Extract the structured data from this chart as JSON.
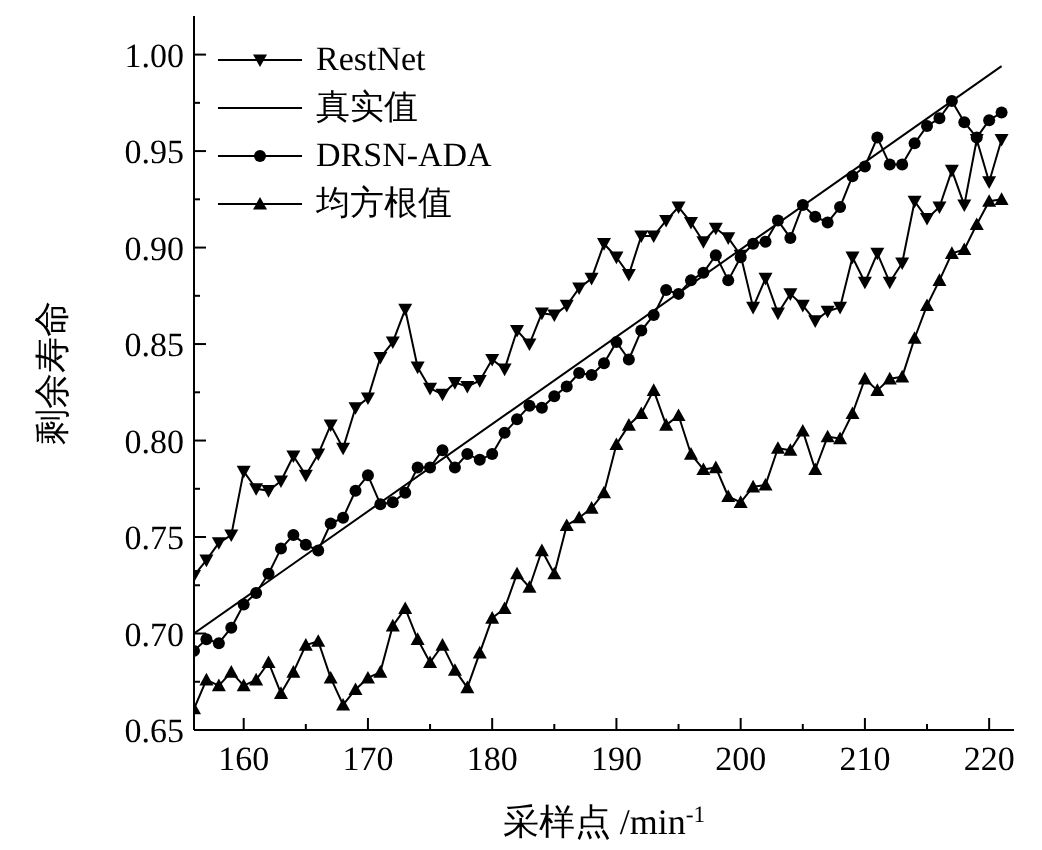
{
  "chart_data": {
    "type": "line",
    "xlabel": "采样点 /min$^{-1}$",
    "ylabel": "剩余寿命",
    "xlim": [
      156,
      222
    ],
    "xticks": [
      160,
      {
        "value": 165,
        "label": null
      },
      170,
      {
        "value": 175,
        "label": null
      },
      180,
      {
        "value": 185,
        "label": null
      },
      190,
      {
        "value": 195,
        "label": null
      },
      200,
      {
        "value": 205,
        "label": null
      },
      210,
      {
        "value": 215,
        "label": null
      },
      220
    ],
    "ylim": [
      0.65,
      1.02
    ],
    "yticks": [
      0.65,
      {
        "value": 0.675,
        "label": null
      },
      {
        "value": 0.7,
        "label": "0.70"
      },
      {
        "value": 0.725,
        "label": null
      },
      0.75,
      {
        "value": 0.775,
        "label": null
      },
      {
        "value": 0.8,
        "label": "0.80"
      },
      {
        "value": 0.825,
        "label": null
      },
      0.85,
      {
        "value": 0.875,
        "label": null
      },
      {
        "value": 0.9,
        "label": "0.90"
      },
      {
        "value": 0.925,
        "label": null
      },
      0.95,
      {
        "value": 0.975,
        "label": null
      },
      {
        "value": 1.0,
        "label": "1.00"
      }
    ],
    "grid": false,
    "legend": "top left",
    "line_style": "solid",
    "series": [
      {
        "name": "RestNet",
        "color": "#000000",
        "marker": "triangle-down",
        "x": [
          156,
          157,
          158,
          159,
          160,
          161,
          162,
          163,
          164,
          165,
          166,
          167,
          168,
          169,
          170,
          171,
          172,
          173,
          174,
          175,
          176,
          177,
          178,
          179,
          180,
          181,
          182,
          183,
          184,
          185,
          186,
          187,
          188,
          189,
          190,
          191,
          192,
          193,
          194,
          195,
          196,
          197,
          198,
          199,
          200,
          201,
          202,
          203,
          204,
          205,
          206,
          207,
          208,
          209,
          210,
          211,
          212,
          213,
          214,
          215,
          216,
          217,
          218,
          219,
          220,
          221
        ],
        "values": [
          0.73,
          0.738,
          0.747,
          0.751,
          0.784,
          0.775,
          0.774,
          0.779,
          0.792,
          0.782,
          0.793,
          0.808,
          0.796,
          0.817,
          0.822,
          0.843,
          0.851,
          0.868,
          0.838,
          0.827,
          0.824,
          0.83,
          0.828,
          0.831,
          0.842,
          0.837,
          0.857,
          0.85,
          0.866,
          0.865,
          0.87,
          0.879,
          0.884,
          0.902,
          0.895,
          0.886,
          0.906,
          0.906,
          0.914,
          0.921,
          0.913,
          0.903,
          0.91,
          0.905,
          0.896,
          0.869,
          0.884,
          0.866,
          0.876,
          0.87,
          0.862,
          0.867,
          0.869,
          0.895,
          0.882,
          0.897,
          0.882,
          0.892,
          0.924,
          0.915,
          0.921,
          0.94,
          0.922,
          0.956,
          0.934,
          0.956
        ]
      },
      {
        "name": "真实值",
        "color": "#000000",
        "marker": "none",
        "x": [
          156,
          221
        ],
        "values": [
          0.7,
          0.994
        ]
      },
      {
        "name": "DRSN-ADA",
        "color": "#000000",
        "marker": "circle",
        "x": [
          156,
          157,
          158,
          159,
          160,
          161,
          162,
          163,
          164,
          165,
          166,
          167,
          168,
          169,
          170,
          171,
          172,
          173,
          174,
          175,
          176,
          177,
          178,
          179,
          180,
          181,
          182,
          183,
          184,
          185,
          186,
          187,
          188,
          189,
          190,
          191,
          192,
          193,
          194,
          195,
          196,
          197,
          198,
          199,
          200,
          201,
          202,
          203,
          204,
          205,
          206,
          207,
          208,
          209,
          210,
          211,
          212,
          213,
          214,
          215,
          216,
          217,
          218,
          219,
          220,
          221
        ],
        "values": [
          0.691,
          0.697,
          0.695,
          0.703,
          0.715,
          0.721,
          0.731,
          0.744,
          0.751,
          0.746,
          0.743,
          0.757,
          0.76,
          0.774,
          0.782,
          0.767,
          0.768,
          0.773,
          0.786,
          0.786,
          0.795,
          0.786,
          0.793,
          0.79,
          0.793,
          0.804,
          0.811,
          0.818,
          0.817,
          0.823,
          0.828,
          0.835,
          0.834,
          0.84,
          0.851,
          0.842,
          0.857,
          0.865,
          0.878,
          0.876,
          0.883,
          0.887,
          0.896,
          0.883,
          0.895,
          0.902,
          0.903,
          0.914,
          0.905,
          0.922,
          0.916,
          0.913,
          0.921,
          0.937,
          0.942,
          0.957,
          0.943,
          0.943,
          0.954,
          0.963,
          0.967,
          0.976,
          0.965,
          0.957,
          0.966,
          0.97
        ]
      },
      {
        "name": "均方根值",
        "color": "#000000",
        "marker": "triangle",
        "x": [
          156,
          157,
          158,
          159,
          160,
          161,
          162,
          163,
          164,
          165,
          166,
          167,
          168,
          169,
          170,
          171,
          172,
          173,
          174,
          175,
          176,
          177,
          178,
          179,
          180,
          181,
          182,
          183,
          184,
          185,
          186,
          187,
          188,
          189,
          190,
          191,
          192,
          193,
          194,
          195,
          196,
          197,
          198,
          199,
          200,
          201,
          202,
          203,
          204,
          205,
          206,
          207,
          208,
          209,
          210,
          211,
          212,
          213,
          214,
          215,
          216,
          217,
          218,
          219,
          220,
          221
        ],
        "values": [
          0.661,
          0.676,
          0.673,
          0.68,
          0.673,
          0.676,
          0.685,
          0.669,
          0.68,
          0.694,
          0.696,
          0.677,
          0.663,
          0.671,
          0.677,
          0.68,
          0.704,
          0.713,
          0.697,
          0.685,
          0.694,
          0.681,
          0.672,
          0.69,
          0.708,
          0.713,
          0.731,
          0.724,
          0.743,
          0.731,
          0.756,
          0.76,
          0.765,
          0.773,
          0.798,
          0.808,
          0.814,
          0.826,
          0.808,
          0.813,
          0.793,
          0.785,
          0.786,
          0.771,
          0.768,
          0.776,
          0.777,
          0.796,
          0.795,
          0.805,
          0.785,
          0.802,
          0.801,
          0.814,
          0.832,
          0.826,
          0.832,
          0.833,
          0.853,
          0.87,
          0.883,
          0.897,
          0.899,
          0.912,
          0.924,
          0.925
        ]
      }
    ]
  }
}
